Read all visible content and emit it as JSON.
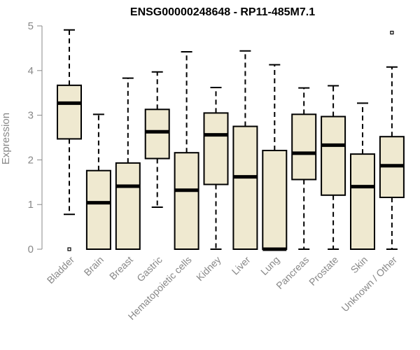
{
  "chart_data": {
    "type": "boxplot",
    "title": "ENSG00000248648 - RP11-485M7.1",
    "xlabel": "",
    "ylabel": "Expression",
    "ylim": [
      0,
      5
    ],
    "yticks": [
      0,
      1,
      2,
      3,
      4,
      5
    ],
    "grid": false,
    "box_fill": "#efe9d0",
    "box_stroke": "#000000",
    "axis_color": "#888888",
    "categories": [
      "Bladder",
      "Brain",
      "Breast",
      "Gastric",
      "Hematopoietic cells",
      "Kidney",
      "Liver",
      "Lung",
      "Pancreas",
      "Prostate",
      "Skin",
      "Unknown / Other"
    ],
    "boxes": [
      {
        "category": "Bladder",
        "whisker_low": 0.78,
        "q1": 2.47,
        "median": 3.27,
        "q3": 3.67,
        "whisker_high": 4.91,
        "outliers": [
          0.0
        ]
      },
      {
        "category": "Brain",
        "whisker_low": 0.0,
        "q1": 0.0,
        "median": 1.04,
        "q3": 1.76,
        "whisker_high": 3.02,
        "outliers": []
      },
      {
        "category": "Breast",
        "whisker_low": 0.0,
        "q1": 0.0,
        "median": 1.41,
        "q3": 1.93,
        "whisker_high": 3.83,
        "outliers": []
      },
      {
        "category": "Gastric",
        "whisker_low": 0.94,
        "q1": 2.03,
        "median": 2.63,
        "q3": 3.13,
        "whisker_high": 3.97,
        "outliers": []
      },
      {
        "category": "Hematopoietic cells",
        "whisker_low": 0.0,
        "q1": 0.0,
        "median": 1.32,
        "q3": 2.16,
        "whisker_high": 4.42,
        "outliers": []
      },
      {
        "category": "Kidney",
        "whisker_low": 0.0,
        "q1": 1.45,
        "median": 2.56,
        "q3": 3.05,
        "whisker_high": 3.62,
        "outliers": []
      },
      {
        "category": "Liver",
        "whisker_low": 0.0,
        "q1": 0.0,
        "median": 1.62,
        "q3": 2.75,
        "whisker_high": 4.44,
        "outliers": []
      },
      {
        "category": "Lung",
        "whisker_low": 0.0,
        "q1": 0.0,
        "median": 0.0,
        "q3": 2.21,
        "whisker_high": 4.13,
        "outliers": []
      },
      {
        "category": "Pancreas",
        "whisker_low": 0.0,
        "q1": 1.56,
        "median": 2.15,
        "q3": 3.02,
        "whisker_high": 3.61,
        "outliers": []
      },
      {
        "category": "Prostate",
        "whisker_low": 0.0,
        "q1": 1.21,
        "median": 2.33,
        "q3": 2.97,
        "whisker_high": 3.66,
        "outliers": []
      },
      {
        "category": "Skin",
        "whisker_low": 0.0,
        "q1": 0.0,
        "median": 1.4,
        "q3": 2.13,
        "whisker_high": 3.27,
        "outliers": []
      },
      {
        "category": "Unknown / Other",
        "whisker_low": 0.0,
        "q1": 1.16,
        "median": 1.87,
        "q3": 2.52,
        "whisker_high": 4.08,
        "outliers": [
          4.85
        ]
      }
    ]
  }
}
